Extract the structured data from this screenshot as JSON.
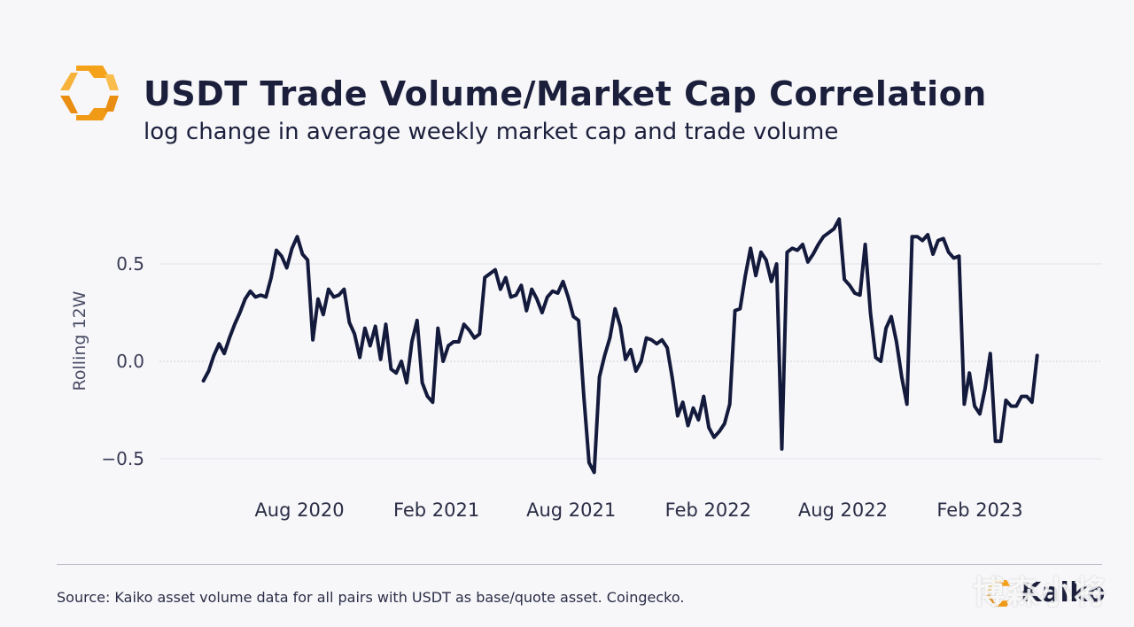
{
  "header": {
    "title": "USDT Trade Volume/Market Cap Correlation",
    "subtitle": "log change in average weekly market cap and trade volume"
  },
  "footer": {
    "source": "Source: Kaiko asset volume data for all pairs with USDT as base/quote asset. Coingecko.",
    "brand": "Kaiko",
    "watermark": "博森小将"
  },
  "colors": {
    "accent": "#f5a21b",
    "line": "#141a3c",
    "text": "#1b1f3b",
    "grid": "#e2e3ea",
    "background": "#f7f7fa"
  },
  "chart_data": {
    "type": "line",
    "ylabel": "Rolling 12W",
    "xlabel": "",
    "ylim": [
      -0.6,
      0.8
    ],
    "yticks": [
      {
        "value": 0.5,
        "label": "0.5"
      },
      {
        "value": 0.0,
        "label": "0.0"
      },
      {
        "value": -0.5,
        "label": "−0.5"
      }
    ],
    "xticks": [
      {
        "date": "2020-08-01",
        "label": "Aug 2020"
      },
      {
        "date": "2021-02-01",
        "label": "Feb 2021"
      },
      {
        "date": "2021-08-01",
        "label": "Aug 2021"
      },
      {
        "date": "2022-02-01",
        "label": "Feb 2022"
      },
      {
        "date": "2022-08-01",
        "label": "Aug 2022"
      },
      {
        "date": "2023-02-01",
        "label": "Feb 2023"
      }
    ],
    "xrange": [
      "2020-02-01",
      "2023-08-15"
    ],
    "grid": true,
    "series": [
      {
        "name": "",
        "points": [
          [
            "2020-03-25",
            -0.1
          ],
          [
            "2020-04-01",
            -0.05
          ],
          [
            "2020-04-08",
            0.03
          ],
          [
            "2020-04-15",
            0.09
          ],
          [
            "2020-04-22",
            0.04
          ],
          [
            "2020-04-29",
            0.12
          ],
          [
            "2020-05-06",
            0.19
          ],
          [
            "2020-05-13",
            0.25
          ],
          [
            "2020-05-20",
            0.32
          ],
          [
            "2020-05-27",
            0.36
          ],
          [
            "2020-06-03",
            0.33
          ],
          [
            "2020-06-10",
            0.34
          ],
          [
            "2020-06-17",
            0.33
          ],
          [
            "2020-06-24",
            0.43
          ],
          [
            "2020-07-01",
            0.57
          ],
          [
            "2020-07-08",
            0.54
          ],
          [
            "2020-07-15",
            0.48
          ],
          [
            "2020-07-22",
            0.58
          ],
          [
            "2020-07-29",
            0.64
          ],
          [
            "2020-08-05",
            0.55
          ],
          [
            "2020-08-12",
            0.52
          ],
          [
            "2020-08-19",
            0.11
          ],
          [
            "2020-08-26",
            0.32
          ],
          [
            "2020-09-02",
            0.24
          ],
          [
            "2020-09-09",
            0.37
          ],
          [
            "2020-09-16",
            0.33
          ],
          [
            "2020-09-23",
            0.34
          ],
          [
            "2020-09-30",
            0.37
          ],
          [
            "2020-10-07",
            0.2
          ],
          [
            "2020-10-14",
            0.14
          ],
          [
            "2020-10-21",
            0.02
          ],
          [
            "2020-10-28",
            0.17
          ],
          [
            "2020-11-04",
            0.08
          ],
          [
            "2020-11-11",
            0.18
          ],
          [
            "2020-11-18",
            0.01
          ],
          [
            "2020-11-25",
            0.19
          ],
          [
            "2020-12-02",
            -0.04
          ],
          [
            "2020-12-09",
            -0.06
          ],
          [
            "2020-12-16",
            0.0
          ],
          [
            "2020-12-23",
            -0.11
          ],
          [
            "2020-12-30",
            0.1
          ],
          [
            "2021-01-06",
            0.21
          ],
          [
            "2021-01-13",
            -0.11
          ],
          [
            "2021-01-20",
            -0.18
          ],
          [
            "2021-01-27",
            -0.21
          ],
          [
            "2021-02-03",
            0.17
          ],
          [
            "2021-02-10",
            0.0
          ],
          [
            "2021-02-17",
            0.08
          ],
          [
            "2021-02-24",
            0.1
          ],
          [
            "2021-03-03",
            0.1
          ],
          [
            "2021-03-10",
            0.19
          ],
          [
            "2021-03-17",
            0.16
          ],
          [
            "2021-03-24",
            0.12
          ],
          [
            "2021-03-31",
            0.14
          ],
          [
            "2021-04-07",
            0.43
          ],
          [
            "2021-04-14",
            0.45
          ],
          [
            "2021-04-21",
            0.47
          ],
          [
            "2021-04-28",
            0.37
          ],
          [
            "2021-05-05",
            0.43
          ],
          [
            "2021-05-12",
            0.33
          ],
          [
            "2021-05-19",
            0.34
          ],
          [
            "2021-05-26",
            0.39
          ],
          [
            "2021-06-02",
            0.26
          ],
          [
            "2021-06-09",
            0.37
          ],
          [
            "2021-06-16",
            0.32
          ],
          [
            "2021-06-23",
            0.25
          ],
          [
            "2021-06-30",
            0.33
          ],
          [
            "2021-07-07",
            0.36
          ],
          [
            "2021-07-14",
            0.35
          ],
          [
            "2021-07-21",
            0.41
          ],
          [
            "2021-07-28",
            0.33
          ],
          [
            "2021-08-04",
            0.23
          ],
          [
            "2021-08-11",
            0.21
          ],
          [
            "2021-08-18",
            -0.18
          ],
          [
            "2021-08-25",
            -0.52
          ],
          [
            "2021-09-01",
            -0.57
          ],
          [
            "2021-09-08",
            -0.08
          ],
          [
            "2021-09-15",
            0.03
          ],
          [
            "2021-09-22",
            0.12
          ],
          [
            "2021-09-29",
            0.27
          ],
          [
            "2021-10-06",
            0.18
          ],
          [
            "2021-10-13",
            0.01
          ],
          [
            "2021-10-20",
            0.06
          ],
          [
            "2021-10-27",
            -0.05
          ],
          [
            "2021-11-03",
            0.0
          ],
          [
            "2021-11-10",
            0.12
          ],
          [
            "2021-11-17",
            0.11
          ],
          [
            "2021-11-24",
            0.09
          ],
          [
            "2021-12-01",
            0.11
          ],
          [
            "2021-12-08",
            0.07
          ],
          [
            "2021-12-15",
            -0.09
          ],
          [
            "2021-12-22",
            -0.28
          ],
          [
            "2021-12-29",
            -0.21
          ],
          [
            "2022-01-05",
            -0.33
          ],
          [
            "2022-01-12",
            -0.24
          ],
          [
            "2022-01-19",
            -0.3
          ],
          [
            "2022-01-26",
            -0.18
          ],
          [
            "2022-02-02",
            -0.34
          ],
          [
            "2022-02-09",
            -0.39
          ],
          [
            "2022-02-16",
            -0.36
          ],
          [
            "2022-02-23",
            -0.32
          ],
          [
            "2022-03-02",
            -0.22
          ],
          [
            "2022-03-09",
            0.26
          ],
          [
            "2022-03-16",
            0.27
          ],
          [
            "2022-03-23",
            0.44
          ],
          [
            "2022-03-30",
            0.58
          ],
          [
            "2022-04-06",
            0.44
          ],
          [
            "2022-04-13",
            0.56
          ],
          [
            "2022-04-20",
            0.52
          ],
          [
            "2022-04-27",
            0.41
          ],
          [
            "2022-05-04",
            0.5
          ],
          [
            "2022-05-11",
            -0.45
          ],
          [
            "2022-05-18",
            0.56
          ],
          [
            "2022-05-25",
            0.58
          ],
          [
            "2022-06-01",
            0.57
          ],
          [
            "2022-06-08",
            0.6
          ],
          [
            "2022-06-15",
            0.51
          ],
          [
            "2022-06-22",
            0.55
          ],
          [
            "2022-06-29",
            0.6
          ],
          [
            "2022-07-06",
            0.64
          ],
          [
            "2022-07-13",
            0.66
          ],
          [
            "2022-07-20",
            0.68
          ],
          [
            "2022-07-27",
            0.73
          ],
          [
            "2022-08-03",
            0.42
          ],
          [
            "2022-08-10",
            0.39
          ],
          [
            "2022-08-17",
            0.35
          ],
          [
            "2022-08-24",
            0.34
          ],
          [
            "2022-08-31",
            0.6
          ],
          [
            "2022-09-07",
            0.25
          ],
          [
            "2022-09-14",
            0.02
          ],
          [
            "2022-09-21",
            0.0
          ],
          [
            "2022-09-28",
            0.17
          ],
          [
            "2022-10-05",
            0.23
          ],
          [
            "2022-10-12",
            0.1
          ],
          [
            "2022-10-19",
            -0.08
          ],
          [
            "2022-10-26",
            -0.22
          ],
          [
            "2022-11-02",
            0.64
          ],
          [
            "2022-11-09",
            0.64
          ],
          [
            "2022-11-16",
            0.62
          ],
          [
            "2022-11-23",
            0.65
          ],
          [
            "2022-11-30",
            0.55
          ],
          [
            "2022-12-07",
            0.62
          ],
          [
            "2022-12-14",
            0.63
          ],
          [
            "2022-12-21",
            0.56
          ],
          [
            "2022-12-28",
            0.53
          ],
          [
            "2023-01-04",
            0.54
          ],
          [
            "2023-01-11",
            -0.22
          ],
          [
            "2023-01-18",
            -0.06
          ],
          [
            "2023-01-25",
            -0.23
          ],
          [
            "2023-02-01",
            -0.27
          ],
          [
            "2023-02-08",
            -0.14
          ],
          [
            "2023-02-15",
            0.04
          ],
          [
            "2023-02-22",
            -0.41
          ],
          [
            "2023-03-01",
            -0.41
          ],
          [
            "2023-03-08",
            -0.2
          ],
          [
            "2023-03-15",
            -0.23
          ],
          [
            "2023-03-22",
            -0.23
          ],
          [
            "2023-03-29",
            -0.18
          ],
          [
            "2023-04-05",
            -0.18
          ],
          [
            "2023-04-12",
            -0.21
          ],
          [
            "2023-04-19",
            0.03
          ]
        ]
      }
    ]
  }
}
